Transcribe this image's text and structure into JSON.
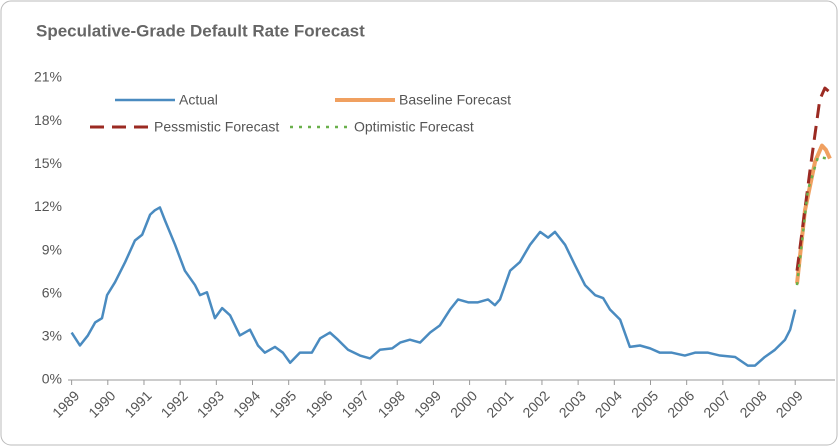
{
  "chart_data": {
    "type": "line",
    "title": "Speculative-Grade Default Rate Forecast",
    "xlim": [
      1988.9,
      2010.1
    ],
    "xticks": [
      1989,
      1990,
      1991,
      1992,
      1993,
      1994,
      1995,
      1996,
      1997,
      1998,
      1999,
      2000,
      2001,
      2002,
      2003,
      2004,
      2005,
      2006,
      2007,
      2008,
      2009
    ],
    "ylim": [
      0,
      21
    ],
    "yticks": [
      {
        "value": 0,
        "label": "0%"
      },
      {
        "value": 3,
        "label": "3%"
      },
      {
        "value": 6,
        "label": "6%"
      },
      {
        "value": 9,
        "label": "9%"
      },
      {
        "value": 12,
        "label": "12%"
      },
      {
        "value": 15,
        "label": "15%"
      },
      {
        "value": 18,
        "label": "18%"
      },
      {
        "value": 21,
        "label": "21%"
      }
    ],
    "grid": false,
    "series": [
      {
        "name": "Actual",
        "color": "#4a8bc0",
        "style": "solid",
        "x": [
          1989.0,
          1989.23,
          1989.45,
          1989.65,
          1989.84,
          1989.98,
          1990.2,
          1990.48,
          1990.75,
          1990.95,
          1991.17,
          1991.3,
          1991.44,
          1991.58,
          1991.86,
          1992.13,
          1992.41,
          1992.55,
          1992.74,
          1992.96,
          1993.16,
          1993.38,
          1993.65,
          1993.93,
          1994.15,
          1994.34,
          1994.62,
          1994.84,
          1995.04,
          1995.31,
          1995.64,
          1995.87,
          1996.14,
          1996.36,
          1996.64,
          1996.97,
          1997.25,
          1997.52,
          1997.86,
          1998.08,
          1998.35,
          1998.63,
          1998.91,
          1999.18,
          1999.46,
          1999.68,
          1999.96,
          2000.23,
          2000.51,
          2000.7,
          2000.84,
          2001.12,
          2001.39,
          2001.67,
          2001.95,
          2002.17,
          2002.36,
          2002.64,
          2002.91,
          2003.19,
          2003.47,
          2003.69,
          2003.88,
          2004.16,
          2004.43,
          2004.71,
          2004.99,
          2005.26,
          2005.59,
          2005.95,
          2006.23,
          2006.59,
          2006.92,
          2007.34,
          2007.69,
          2007.89,
          2008.16,
          2008.44,
          2008.72,
          2008.86,
          2009.0
        ],
        "values": [
          3.3,
          2.4,
          3.1,
          4.0,
          4.3,
          5.9,
          6.8,
          8.2,
          9.7,
          10.1,
          11.5,
          11.8,
          12.0,
          11.1,
          9.4,
          7.6,
          6.6,
          5.9,
          6.1,
          4.3,
          5.0,
          4.5,
          3.1,
          3.5,
          2.4,
          1.9,
          2.3,
          1.9,
          1.2,
          1.9,
          1.9,
          2.9,
          3.3,
          2.8,
          2.1,
          1.7,
          1.5,
          2.1,
          2.2,
          2.6,
          2.8,
          2.6,
          3.3,
          3.8,
          4.9,
          5.6,
          5.4,
          5.4,
          5.6,
          5.2,
          5.6,
          7.6,
          8.2,
          9.4,
          10.3,
          9.9,
          10.3,
          9.4,
          8.0,
          6.6,
          5.9,
          5.7,
          4.9,
          4.2,
          2.3,
          2.4,
          2.2,
          1.9,
          1.9,
          1.7,
          1.9,
          1.9,
          1.7,
          1.6,
          1.0,
          1.0,
          1.6,
          2.1,
          2.8,
          3.5,
          4.9
        ]
      },
      {
        "name": "Baseline Forecast",
        "color": "#f0a060",
        "style": "solid",
        "x": [
          2009.05,
          2009.27,
          2009.55,
          2009.74,
          2009.85,
          2009.96
        ],
        "values": [
          6.7,
          11.8,
          15.2,
          16.3,
          16.0,
          15.4
        ]
      },
      {
        "name": "Pessmistic Forecast",
        "color": "#9b2a22",
        "style": "dashed",
        "x": [
          2009.05,
          2009.41,
          2009.68,
          2009.82,
          2009.96
        ],
        "values": [
          7.6,
          14.6,
          19.5,
          20.3,
          20.0
        ]
      },
      {
        "name": "Optimistic Forecast",
        "color": "#6ab04c",
        "style": "dotted",
        "x": [
          2009.05,
          2009.35,
          2009.63,
          2009.91
        ],
        "values": [
          6.6,
          13.2,
          15.5,
          15.4
        ]
      }
    ]
  }
}
